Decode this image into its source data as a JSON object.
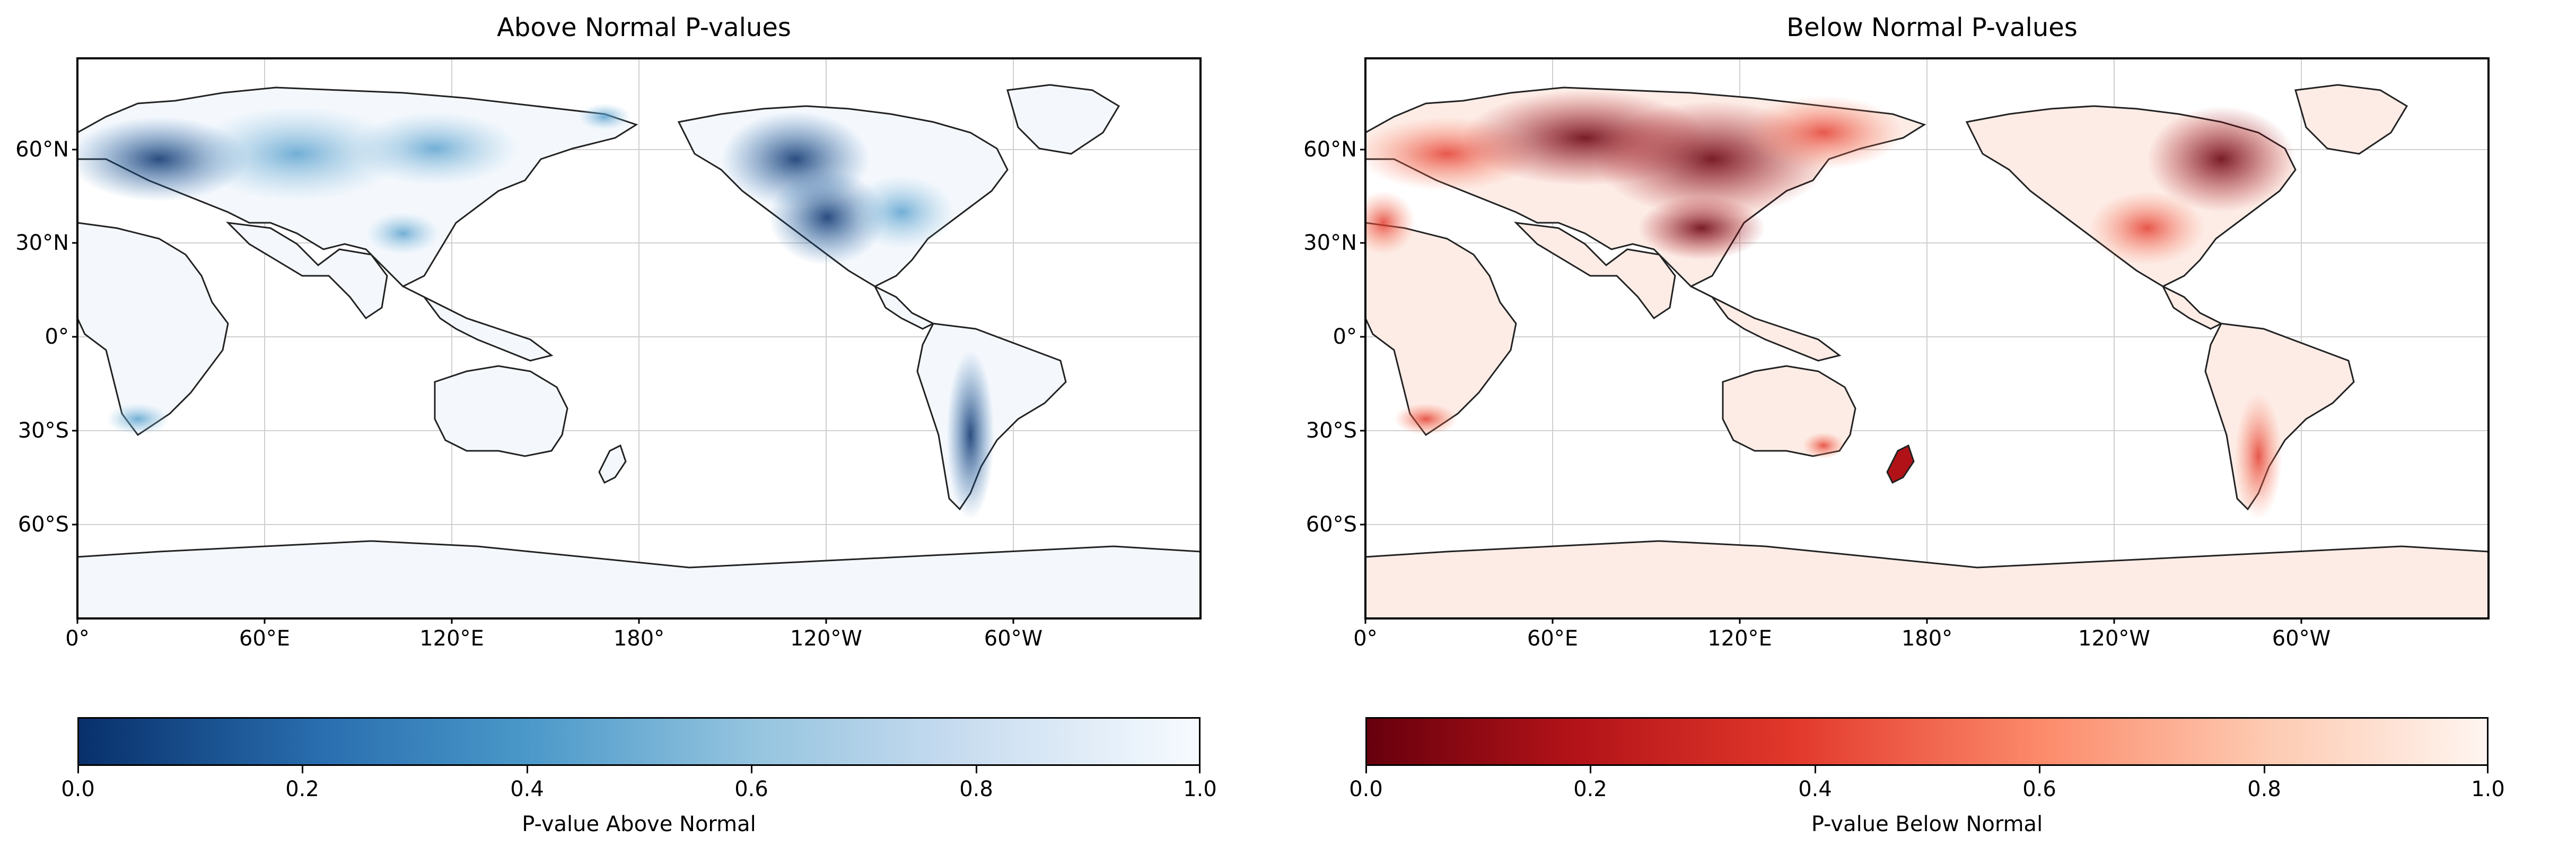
{
  "figure": {
    "panels": [
      {
        "title": "Above Normal P-values",
        "colormap": "Blues",
        "cbar_colors": [
          "#08306b",
          "#2a6fb0",
          "#4a98c9",
          "#94c4df",
          "#c6dbef",
          "#f7fbff"
        ],
        "cbar_label": "P-value Above Normal",
        "cbar_ticks": [
          "0.0",
          "0.2",
          "0.4",
          "0.6",
          "0.8",
          "1.0"
        ],
        "lat_labels": [
          "60°N",
          "30°N",
          "0°",
          "30°S",
          "60°S"
        ],
        "lon_labels": [
          "0°",
          "60°E",
          "120°E",
          "180°",
          "120°W",
          "60°W"
        ]
      },
      {
        "title": "Below Normal P-values",
        "colormap": "Reds",
        "cbar_colors": [
          "#67000d",
          "#b11218",
          "#e2382b",
          "#fc8a6a",
          "#fdc9b0",
          "#fff5f0"
        ],
        "cbar_label": "P-value Below Normal",
        "cbar_ticks": [
          "0.0",
          "0.2",
          "0.4",
          "0.6",
          "0.8",
          "1.0"
        ],
        "lat_labels": [
          "60°N",
          "30°N",
          "0°",
          "30°S",
          "60°S"
        ],
        "lon_labels": [
          "0°",
          "60°E",
          "120°E",
          "180°",
          "120°W",
          "60°W"
        ]
      }
    ],
    "projection": "PlateCarree, central longitude 180°",
    "gridlines": true,
    "cbar_position": "bottom",
    "dominant_regions": {
      "above_normal_low_p": [
        "Western North America",
        "Europe",
        "Southern South America"
      ],
      "below_normal_low_p": [
        "Central and East Asia",
        "Eastern Canada",
        "New Zealand",
        "South-east Australia"
      ]
    }
  }
}
